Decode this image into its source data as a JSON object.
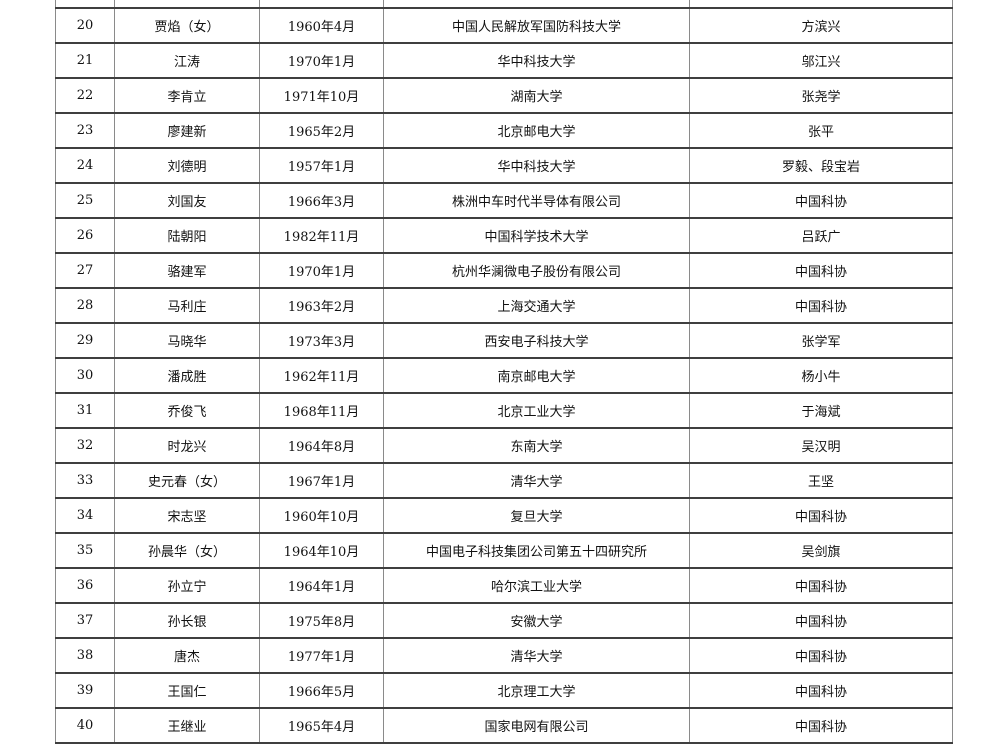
{
  "page": {
    "background_color": "#ffffff",
    "text_color": "#111111",
    "horizontal_rule_color": "#3f3f3f",
    "vertical_rule_color": "#8a8a8a"
  },
  "table": {
    "rows": [
      [
        "20",
        "贾焰（女）",
        "1960年4月",
        "中国人民解放军国防科技大学",
        "方滨兴"
      ],
      [
        "21",
        "江涛",
        "1970年1月",
        "华中科技大学",
        "邬江兴"
      ],
      [
        "22",
        "李肯立",
        "1971年10月",
        "湖南大学",
        "张尧学"
      ],
      [
        "23",
        "廖建新",
        "1965年2月",
        "北京邮电大学",
        "张平"
      ],
      [
        "24",
        "刘德明",
        "1957年1月",
        "华中科技大学",
        "罗毅、段宝岩"
      ],
      [
        "25",
        "刘国友",
        "1966年3月",
        "株洲中车时代半导体有限公司",
        "中国科协"
      ],
      [
        "26",
        "陆朝阳",
        "1982年11月",
        "中国科学技术大学",
        "吕跃广"
      ],
      [
        "27",
        "骆建军",
        "1970年1月",
        "杭州华澜微电子股份有限公司",
        "中国科协"
      ],
      [
        "28",
        "马利庄",
        "1963年2月",
        "上海交通大学",
        "中国科协"
      ],
      [
        "29",
        "马晓华",
        "1973年3月",
        "西安电子科技大学",
        "张学军"
      ],
      [
        "30",
        "潘成胜",
        "1962年11月",
        "南京邮电大学",
        "杨小牛"
      ],
      [
        "31",
        "乔俊飞",
        "1968年11月",
        "北京工业大学",
        "于海斌"
      ],
      [
        "32",
        "时龙兴",
        "1964年8月",
        "东南大学",
        "吴汉明"
      ],
      [
        "33",
        "史元春（女）",
        "1967年1月",
        "清华大学",
        "王坚"
      ],
      [
        "34",
        "宋志坚",
        "1960年10月",
        "复旦大学",
        "中国科协"
      ],
      [
        "35",
        "孙晨华（女）",
        "1964年10月",
        "中国电子科技集团公司第五十四研究所",
        "吴剑旗"
      ],
      [
        "36",
        "孙立宁",
        "1964年1月",
        "哈尔滨工业大学",
        "中国科协"
      ],
      [
        "37",
        "孙长银",
        "1975年8月",
        "安徽大学",
        "中国科协"
      ],
      [
        "38",
        "唐杰",
        "1977年1月",
        "清华大学",
        "中国科协"
      ],
      [
        "39",
        "王国仁",
        "1966年5月",
        "北京理工大学",
        "中国科协"
      ],
      [
        "40",
        "王继业",
        "1965年4月",
        "国家电网有限公司",
        "中国科协"
      ]
    ]
  }
}
